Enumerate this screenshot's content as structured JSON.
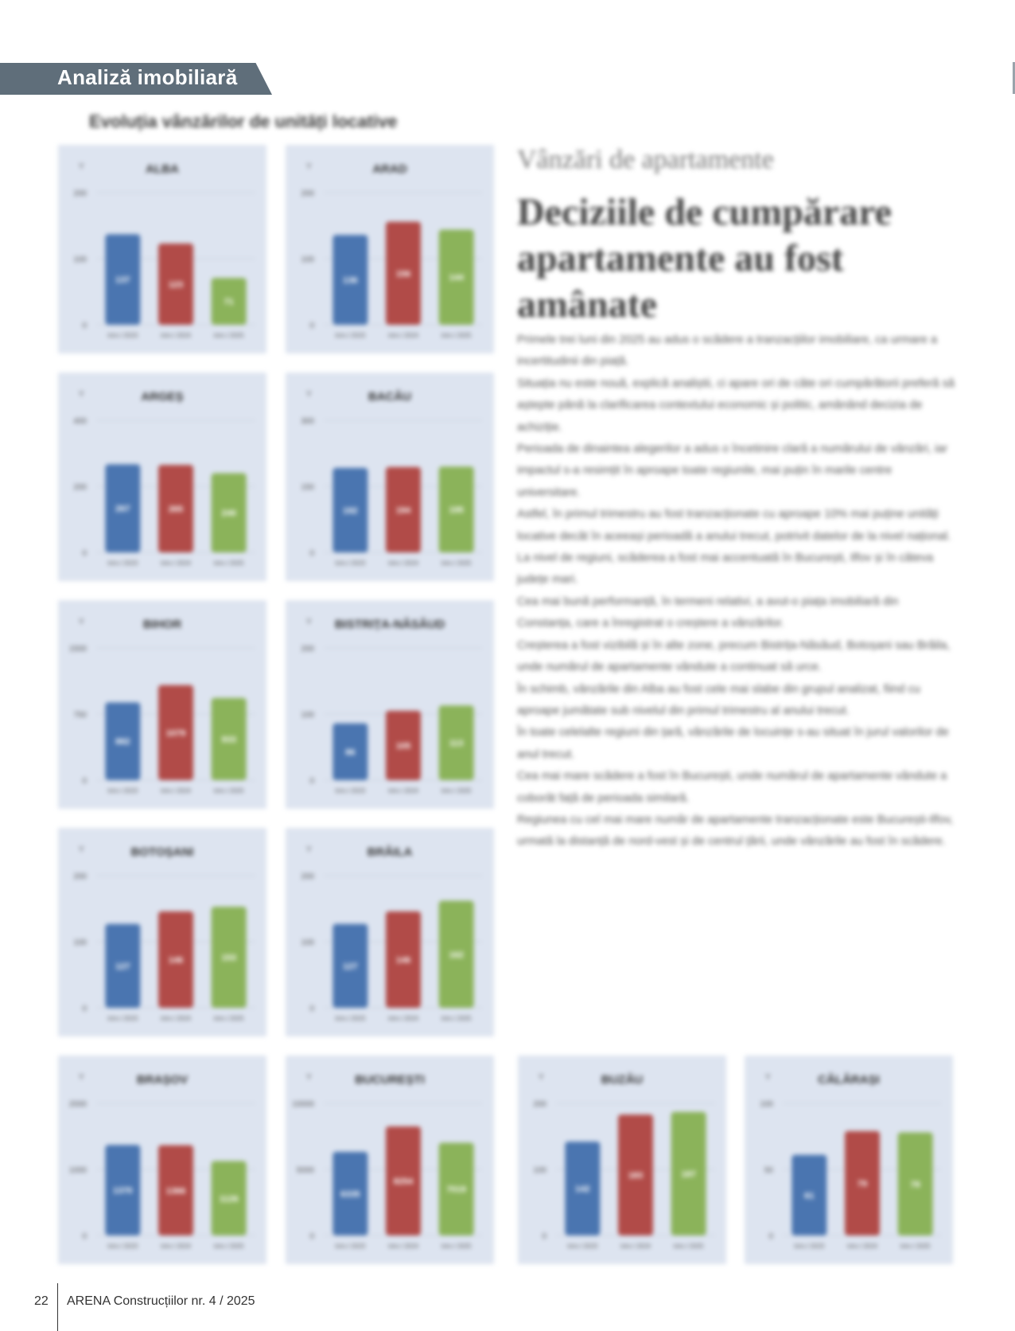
{
  "header": {
    "section": "Analiză imobiliară"
  },
  "charts_section_title": "Evoluția vânzărilor de unități locative",
  "chart_data": [
    {
      "type": "bar",
      "title": "ALBA",
      "unit": "Y",
      "categories": [
        "trim.I 2023",
        "trim.I 2024",
        "trim.I 2025"
      ],
      "values": [
        137,
        123,
        71
      ],
      "ylim": [
        0,
        200
      ],
      "ticks": [
        "0",
        "100",
        "200"
      ],
      "colors": [
        "#4a75b0",
        "#b14b48",
        "#8bb35a"
      ]
    },
    {
      "type": "bar",
      "title": "ARAD",
      "unit": "Y",
      "categories": [
        "trim.I 2023",
        "trim.I 2024",
        "trim.I 2025"
      ],
      "values": [
        136,
        156,
        144
      ],
      "ylim": [
        0,
        200
      ],
      "ticks": [
        "0",
        "100",
        "200"
      ],
      "colors": [
        "#4a75b0",
        "#b14b48",
        "#8bb35a"
      ]
    },
    {
      "type": "bar",
      "title": "ARGEȘ",
      "unit": "Y",
      "categories": [
        "trim.I 2023",
        "trim.I 2024",
        "trim.I 2025"
      ],
      "values": [
        267,
        265,
        240
      ],
      "ylim": [
        0,
        400
      ],
      "ticks": [
        "0",
        "200",
        "400"
      ],
      "colors": [
        "#4a75b0",
        "#b14b48",
        "#8bb35a"
      ]
    },
    {
      "type": "bar",
      "title": "BACĂU",
      "unit": "Y",
      "categories": [
        "trim.I 2023",
        "trim.I 2024",
        "trim.I 2025"
      ],
      "values": [
        192,
        194,
        195
      ],
      "ylim": [
        0,
        300
      ],
      "ticks": [
        "0",
        "150",
        "300"
      ],
      "colors": [
        "#4a75b0",
        "#b14b48",
        "#8bb35a"
      ]
    },
    {
      "type": "bar",
      "title": "BIHOR",
      "unit": "Y",
      "categories": [
        "trim.I 2023",
        "trim.I 2024",
        "trim.I 2025"
      ],
      "values": [
        882,
        1079,
        933
      ],
      "ylim": [
        0,
        1500
      ],
      "ticks": [
        "0",
        "750",
        "1500"
      ],
      "colors": [
        "#4a75b0",
        "#b14b48",
        "#8bb35a"
      ]
    },
    {
      "type": "bar",
      "title": "BISTRIȚA-NĂSĂUD",
      "unit": "Y",
      "categories": [
        "trim.I 2023",
        "trim.I 2024",
        "trim.I 2025"
      ],
      "values": [
        86,
        105,
        113
      ],
      "ylim": [
        0,
        200
      ],
      "ticks": [
        "0",
        "100",
        "200"
      ],
      "colors": [
        "#4a75b0",
        "#b14b48",
        "#8bb35a"
      ]
    },
    {
      "type": "bar",
      "title": "BOTOȘANI",
      "unit": "Y",
      "categories": [
        "trim.I 2023",
        "trim.I 2024",
        "trim.I 2025"
      ],
      "values": [
        127,
        146,
        153
      ],
      "ylim": [
        0,
        200
      ],
      "ticks": [
        "0",
        "100",
        "200"
      ],
      "colors": [
        "#4a75b0",
        "#b14b48",
        "#8bb35a"
      ]
    },
    {
      "type": "bar",
      "title": "BRĂILA",
      "unit": "Y",
      "categories": [
        "trim.I 2023",
        "trim.I 2024",
        "trim.I 2025"
      ],
      "values": [
        127,
        146,
        162
      ],
      "ylim": [
        0,
        200
      ],
      "ticks": [
        "0",
        "100",
        "200"
      ],
      "colors": [
        "#4a75b0",
        "#b14b48",
        "#8bb35a"
      ]
    },
    {
      "type": "bar",
      "title": "BRAȘOV",
      "unit": "Y",
      "categories": [
        "trim.I 2023",
        "trim.I 2024",
        "trim.I 2025"
      ],
      "values": [
        1370,
        1366,
        1126
      ],
      "ylim": [
        0,
        2000
      ],
      "ticks": [
        "0",
        "1000",
        "2000"
      ],
      "colors": [
        "#4a75b0",
        "#b14b48",
        "#8bb35a"
      ]
    },
    {
      "type": "bar",
      "title": "BUCUREȘTI",
      "unit": "Y",
      "categories": [
        "trim.I 2023",
        "trim.I 2024",
        "trim.I 2025"
      ],
      "values": [
        6335,
        8254,
        7019
      ],
      "ylim": [
        0,
        10000
      ],
      "ticks": [
        "0",
        "5000",
        "10000"
      ],
      "colors": [
        "#4a75b0",
        "#b14b48",
        "#8bb35a"
      ]
    },
    {
      "type": "bar",
      "title": "BUZĂU",
      "unit": "Y",
      "categories": [
        "trim.I 2023",
        "trim.I 2024",
        "trim.I 2025"
      ],
      "values": [
        142,
        183,
        187
      ],
      "ylim": [
        0,
        200
      ],
      "ticks": [
        "0",
        "100",
        "200"
      ],
      "colors": [
        "#4a75b0",
        "#b14b48",
        "#8bb35a"
      ]
    },
    {
      "type": "bar",
      "title": "CĂLĂRAȘI",
      "unit": "Y",
      "categories": [
        "trim.I 2023",
        "trim.I 2024",
        "trim.I 2025"
      ],
      "values": [
        61,
        79,
        78
      ],
      "ylim": [
        0,
        100
      ],
      "ticks": [
        "0",
        "50",
        "100"
      ],
      "colors": [
        "#4a75b0",
        "#b14b48",
        "#8bb35a"
      ]
    }
  ],
  "article": {
    "kicker": "Vânzări de apartamente",
    "headline": "Deciziile de cumpărare apartamente au fost amânate",
    "paragraphs": [
      "Primele trei luni din 2025 au adus o scădere a tranzacțiilor imobiliare, ca urmare a incertitudinii din piață.",
      "Situația nu este nouă, explică analiștii, ci apare ori de câte ori cumpărătorii preferă să aștepte până la clarificarea contextului economic și politic, amânând decizia de achiziție.",
      "Perioada de dinaintea alegerilor a adus o încetinire clară a numărului de vânzări, iar impactul s-a resimțit în aproape toate regiunile, mai puțin în marile centre universitare.",
      "Astfel, în primul trimestru au fost tranzacționate cu aproape 10% mai puține unități locative decât în aceeași perioadă a anului trecut, potrivit datelor de la nivel național.",
      "La nivel de regiuni, scăderea a fost mai accentuată în București, Ilfov și în câteva județe mari.",
      "Cea mai bună performanță, în termeni relativi, a avut-o piața imobiliară din Constanța, care a înregistrat o creștere a vânzărilor.",
      "Creșterea a fost vizibilă și în alte zone, precum Bistrița-Năsăud, Botoșani sau Brăila, unde numărul de apartamente vândute a continuat să urce.",
      "În schimb, vânzările din Alba au fost cele mai slabe din grupul analizat, fiind cu aproape jumătate sub nivelul din primul trimestru al anului trecut.",
      "În toate celelalte regiuni din țară, vânzările de locuințe s-au situat în jurul valorilor de anul trecut.",
      "Cea mai mare scădere a fost în București, unde numărul de apartamente vândute a coborât față de perioada similară.",
      "Regiunea cu cel mai mare număr de apartamente tranzacționate este București-Ilfov, urmată la distanță de nord-vest și de centrul țării, unde vânzările au fost în scădere."
    ]
  },
  "footer": {
    "page": "22",
    "publication": "ARENA Construcțiilor nr. 4 / 2025"
  }
}
